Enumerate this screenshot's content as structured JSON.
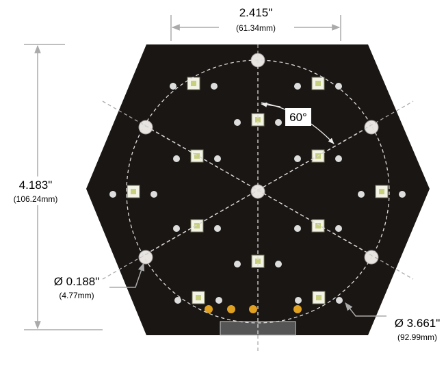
{
  "width": {
    "inch": "2.415\"",
    "mm": "(61.34mm)"
  },
  "height": {
    "inch": "4.183\"",
    "mm": "(106.24mm)"
  },
  "angle": "60°",
  "hole": {
    "inch": "Ø 0.188\"",
    "mm": "(4.77mm)"
  },
  "bolt_circle": {
    "inch": "Ø 3.661\"",
    "mm": "(92.99mm)"
  }
}
